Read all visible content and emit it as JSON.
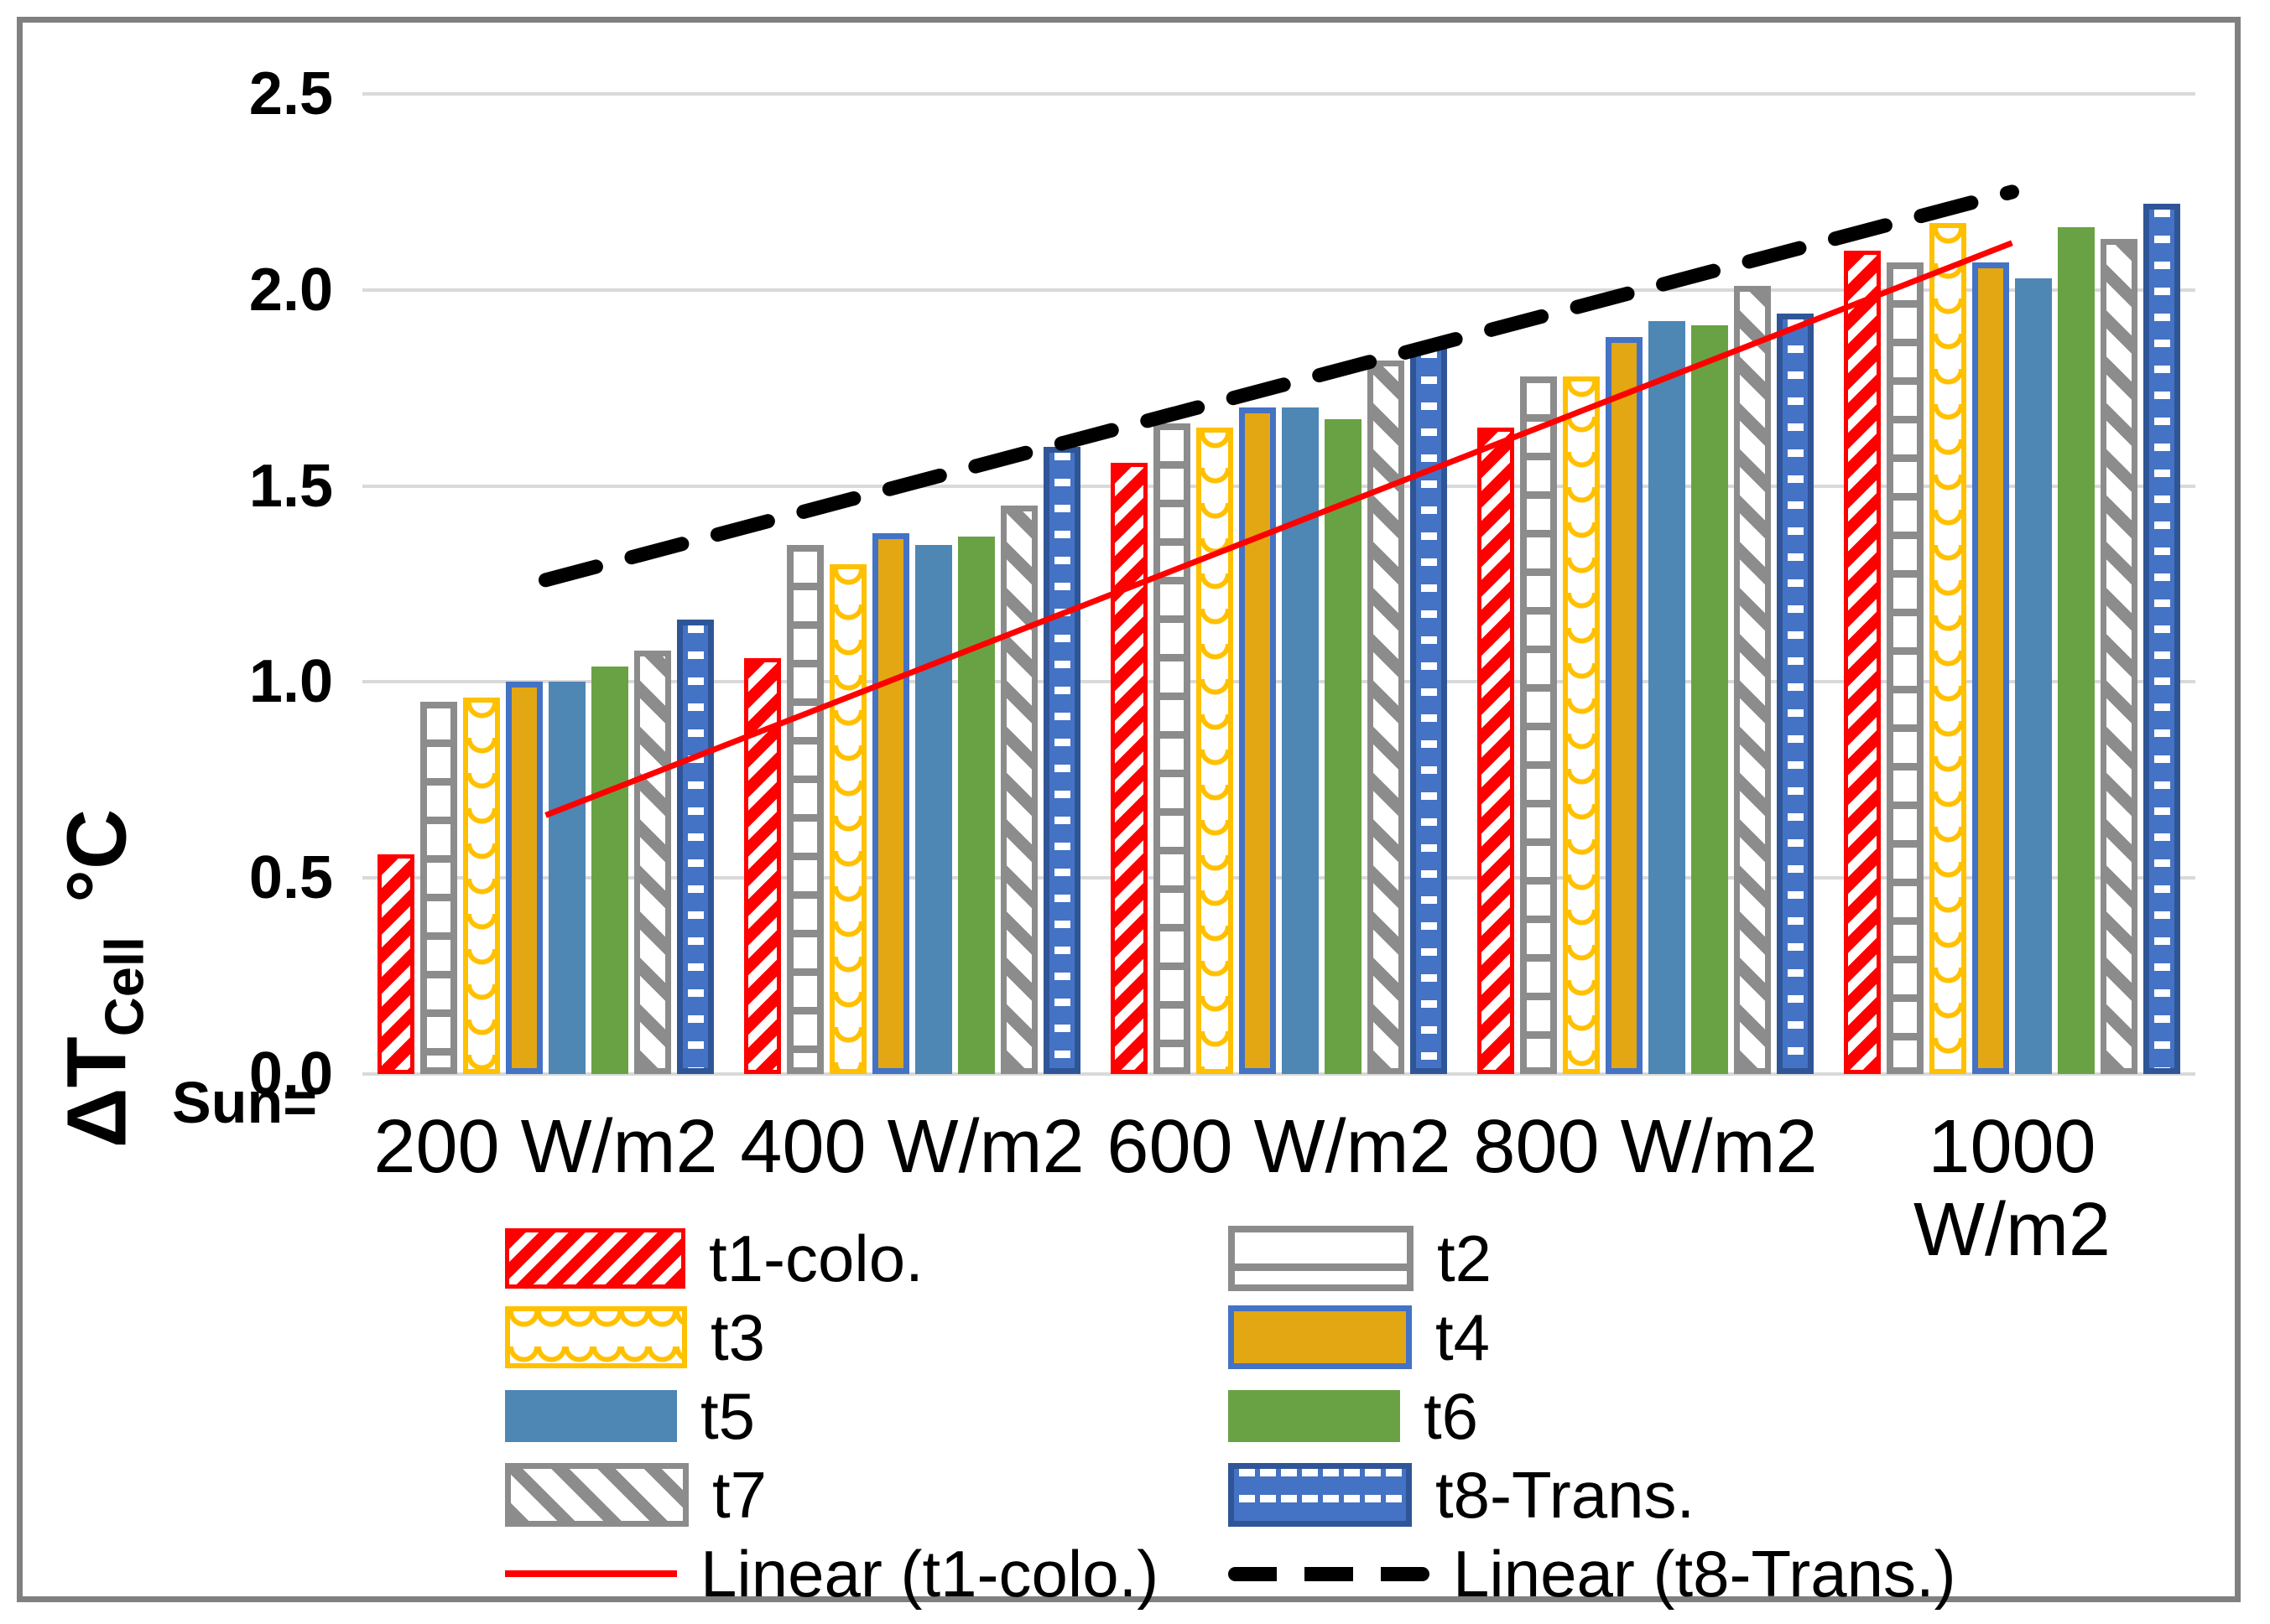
{
  "chart_data": {
    "type": "bar",
    "title": "",
    "ylabel_main": "ΔT",
    "ylabel_sub": "Cell",
    "ylabel_unit": "°C",
    "sun_label": "Sun=",
    "categories": [
      "200 W/m2",
      "400 W/m2",
      "600 W/m2",
      "800 W/m2",
      "1000 W/m2"
    ],
    "ylim": [
      0,
      2.5
    ],
    "yticks": [
      "2.5",
      "2.0",
      "1.5",
      "1.0",
      "0.5",
      "0.0"
    ],
    "grid": true,
    "legend_position": "bottom",
    "series": [
      {
        "name": "t1-colo.",
        "style": "red-hatch",
        "values": [
          0.56,
          1.06,
          1.56,
          1.65,
          2.1
        ]
      },
      {
        "name": "t2",
        "style": "gray-ladder",
        "values": [
          0.95,
          1.35,
          1.66,
          1.78,
          2.07
        ]
      },
      {
        "name": "t3",
        "style": "yellow-scale",
        "values": [
          0.96,
          1.3,
          1.65,
          1.78,
          2.17
        ]
      },
      {
        "name": "t4",
        "style": "gold-solid",
        "values": [
          1.0,
          1.38,
          1.7,
          1.88,
          2.07
        ]
      },
      {
        "name": "t5",
        "style": "blue-solid",
        "values": [
          1.0,
          1.35,
          1.7,
          1.92,
          2.03
        ]
      },
      {
        "name": "t6",
        "style": "green-solid",
        "values": [
          1.04,
          1.37,
          1.67,
          1.91,
          2.16
        ]
      },
      {
        "name": "t7",
        "style": "gray-diag",
        "values": [
          1.08,
          1.45,
          1.82,
          2.01,
          2.13
        ]
      },
      {
        "name": "t8-Trans.",
        "style": "blue-dash",
        "values": [
          1.16,
          1.6,
          1.86,
          1.94,
          2.22
        ]
      }
    ],
    "trendlines": [
      {
        "name": "Linear (t1-colo.)",
        "style": "red-line",
        "start_value": 0.66,
        "end_value": 2.12
      },
      {
        "name": "Linear (t8-Trans.)",
        "style": "black-dashed",
        "start_value": 1.26,
        "end_value": 2.25
      }
    ]
  },
  "colors": {
    "t1_red": "#FF0000",
    "t2_gray": "#8C8C8C",
    "t3_yellow": "#FFC000",
    "t4_gold": "#E2A713",
    "t4_border_blue": "#4472C4",
    "t5_blue": "#4E86B4",
    "t6_green": "#69A244",
    "t7_gray": "#8C8C8C",
    "t8_blue_fill": "#4472C4",
    "t8_blue_border": "#2F5597",
    "trendline_red": "#FF0000",
    "trendline_black": "#000000",
    "gridline_gray": "#D9D9D9",
    "frame_gray": "#808080"
  }
}
